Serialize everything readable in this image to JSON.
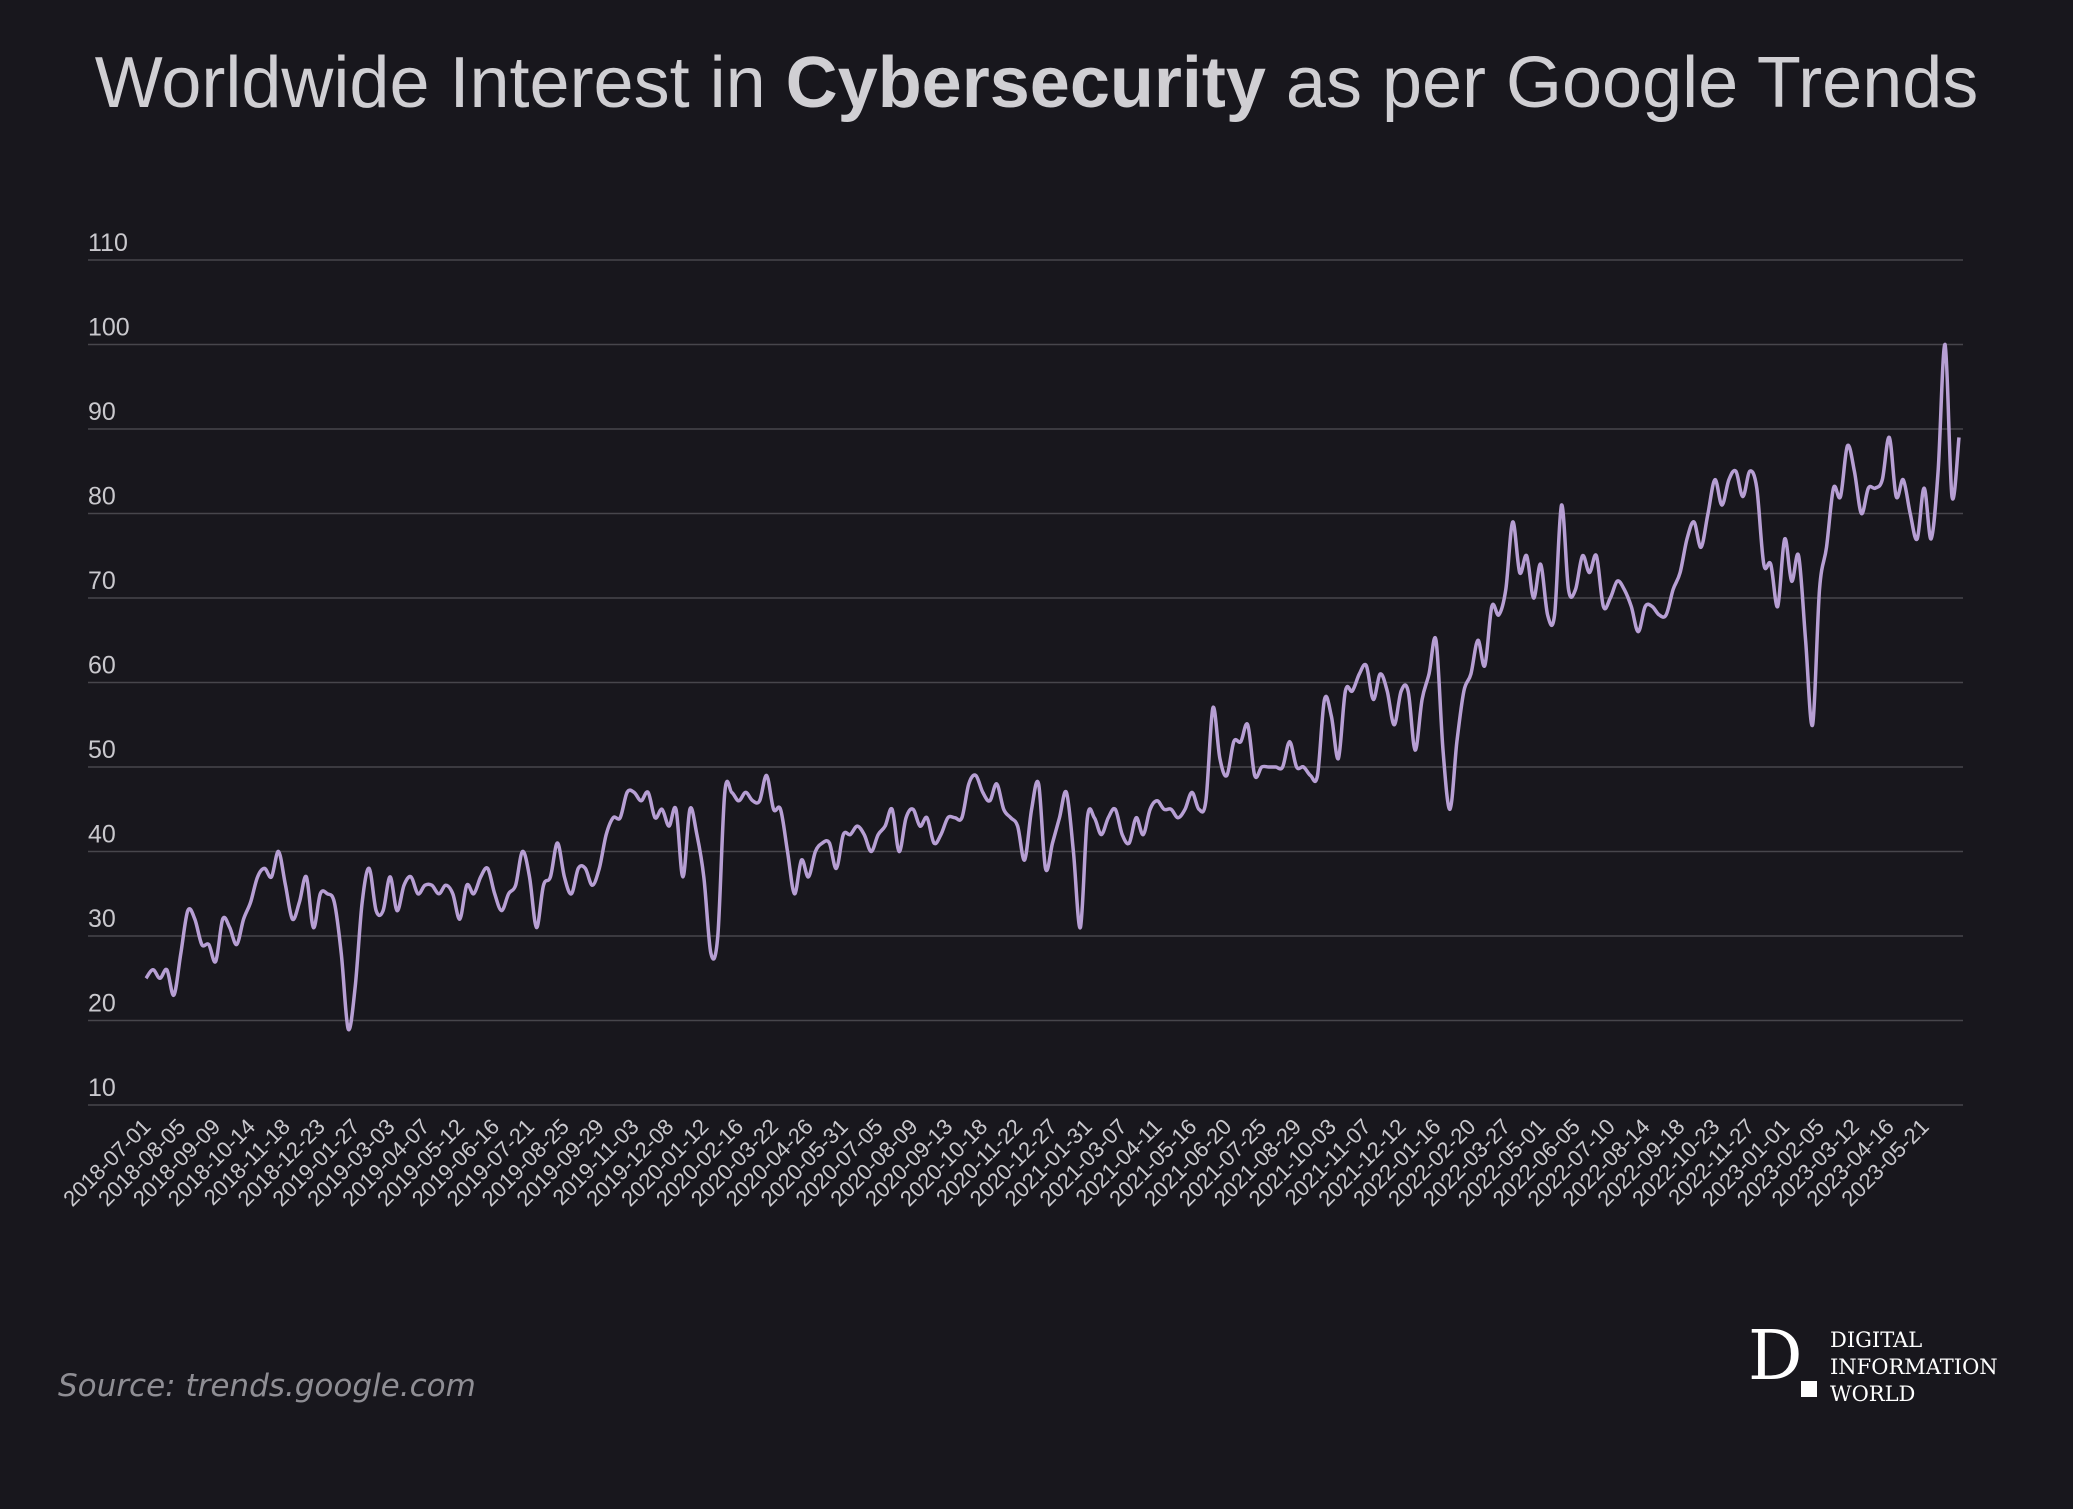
{
  "header": {
    "title_pre": "Worldwide Interest in ",
    "title_bold": "Cybersecurity",
    "title_post": " as per Google Trends"
  },
  "footer": {
    "source": "Source: trends.google.com",
    "logo_letter": "D",
    "logo_lines": [
      "DIGITAL",
      "INFORMATION",
      "WORLD"
    ]
  },
  "colors": {
    "background": "#18171d",
    "line": "#b79fd4",
    "grid": "#47464c",
    "tick_text": "#c9c8cd"
  },
  "chart_data": {
    "type": "line",
    "title": "Worldwide Interest in Cybersecurity as per Google Trends",
    "xlabel": "",
    "ylabel": "",
    "ylim": [
      10,
      110
    ],
    "yticks": [
      10,
      20,
      30,
      40,
      50,
      60,
      70,
      80,
      90,
      100,
      110
    ],
    "grid": true,
    "x_start": "2018-07-01",
    "x_step": "1 week",
    "x_tick_labels": [
      "2018-07-01",
      "2018-08-05",
      "2018-09-09",
      "2018-10-14",
      "2018-11-18",
      "2018-12-23",
      "2019-01-27",
      "2019-03-03",
      "2019-04-07",
      "2019-05-12",
      "2019-06-16",
      "2019-07-21",
      "2019-08-25",
      "2019-09-29",
      "2019-11-03",
      "2019-12-08",
      "2020-01-12",
      "2020-02-16",
      "2020-03-22",
      "2020-04-26",
      "2020-05-31",
      "2020-07-05",
      "2020-08-09",
      "2020-09-13",
      "2020-10-18",
      "2020-11-22",
      "2020-12-27",
      "2021-01-31",
      "2021-03-07",
      "2021-04-11",
      "2021-05-16",
      "2021-06-20",
      "2021-07-25",
      "2021-08-29",
      "2021-10-03",
      "2021-11-07",
      "2021-12-12",
      "2022-01-16",
      "2022-02-20",
      "2022-03-27",
      "2022-05-01",
      "2022-06-05",
      "2022-07-10",
      "2022-08-14",
      "2022-09-18",
      "2022-10-23",
      "2022-11-27",
      "2023-01-01",
      "2023-02-05",
      "2023-03-12",
      "2023-04-16",
      "2023-05-21"
    ],
    "series": [
      {
        "name": "Cybersecurity",
        "values": [
          25,
          26,
          25,
          26,
          23,
          28,
          33,
          32,
          29,
          29,
          27,
          32,
          31,
          29,
          32,
          34,
          37,
          38,
          37,
          40,
          36,
          32,
          34,
          37,
          31,
          35,
          35,
          34,
          28,
          19,
          24,
          34,
          38,
          33,
          33,
          37,
          33,
          36,
          37,
          35,
          36,
          36,
          35,
          36,
          35,
          32,
          36,
          35,
          37,
          38,
          35,
          33,
          35,
          36,
          40,
          37,
          31,
          36,
          37,
          41,
          37,
          35,
          38,
          38,
          36,
          38,
          42,
          44,
          44,
          47,
          47,
          46,
          47,
          44,
          45,
          43,
          45,
          37,
          45,
          42,
          37,
          28,
          30,
          47,
          47,
          46,
          47,
          46,
          46,
          49,
          45,
          45,
          40,
          35,
          39,
          37,
          40,
          41,
          41,
          38,
          42,
          42,
          43,
          42,
          40,
          42,
          43,
          45,
          40,
          44,
          45,
          43,
          44,
          41,
          42,
          44,
          44,
          44,
          48,
          49,
          47,
          46,
          48,
          45,
          44,
          43,
          39,
          45,
          48,
          38,
          41,
          44,
          47,
          40,
          31,
          44,
          44,
          42,
          44,
          45,
          42,
          41,
          44,
          42,
          45,
          46,
          45,
          45,
          44,
          45,
          47,
          45,
          46,
          57,
          51,
          49,
          53,
          53,
          55,
          49,
          50,
          50,
          50,
          50,
          53,
          50,
          50,
          49,
          49,
          58,
          56,
          51,
          59,
          59,
          61,
          62,
          58,
          61,
          59,
          55,
          59,
          59,
          52,
          58,
          61,
          65,
          52,
          45,
          53,
          59,
          61,
          65,
          62,
          69,
          68,
          71,
          79,
          73,
          75,
          70,
          74,
          68,
          68,
          81,
          71,
          71,
          75,
          73,
          75,
          69,
          70,
          72,
          71,
          69,
          66,
          69,
          69,
          68,
          68,
          71,
          73,
          77,
          79,
          76,
          80,
          84,
          81,
          84,
          85,
          82,
          85,
          83,
          74,
          74,
          69,
          77,
          72,
          75,
          65,
          55,
          71,
          76,
          83,
          82,
          88,
          85,
          80,
          83,
          83,
          84,
          89,
          82,
          84,
          80,
          77,
          83,
          77,
          85,
          100,
          82,
          89
        ]
      }
    ]
  }
}
